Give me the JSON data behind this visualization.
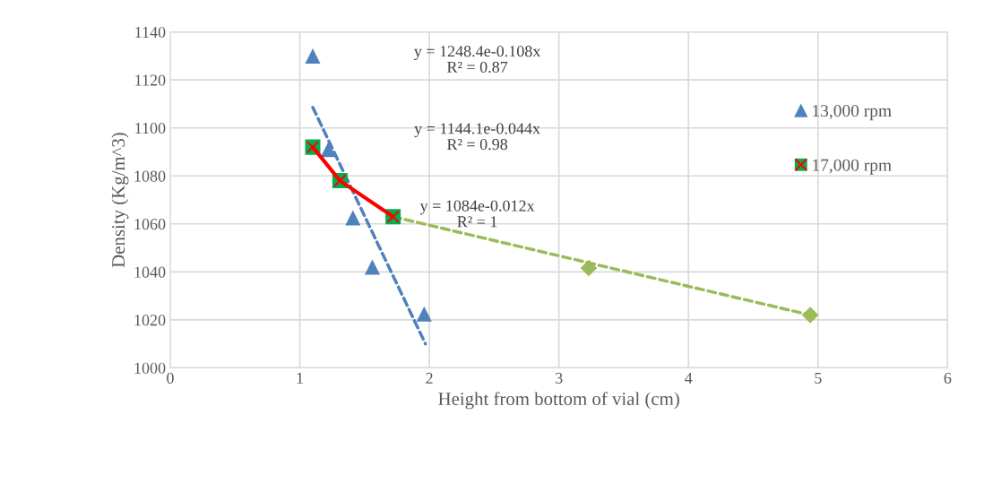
{
  "chart_data": {
    "type": "scatter",
    "xlabel": "Height from bottom of vial (cm)",
    "ylabel": "Density (Kg/m^3)",
    "xlim": [
      0,
      6
    ],
    "xticks": [
      0,
      1,
      2,
      3,
      4,
      5,
      6
    ],
    "ylim": [
      1000,
      1140
    ],
    "yticks": [
      1000,
      1020,
      1040,
      1060,
      1080,
      1100,
      1120,
      1140
    ],
    "grid": true,
    "legend": "right",
    "annotations": [
      "y = 1248.4e-0.108x\nR² = 0.87",
      "y = 1144.1e-0.044x\nR² = 0.98",
      "y = 1084e-0.012x\nR² = 1"
    ],
    "series": [
      {
        "type": "line",
        "x": [
          1.1,
          1.97
        ],
        "values": [
          1108.6,
          1010
        ],
        "color": "#4f81bd",
        "line_style": "dashed"
      },
      {
        "type": "line",
        "x": [
          1.72,
          4.94
        ],
        "values": [
          1063,
          1022
        ],
        "color": "#9bbb59",
        "line_style": "dashed"
      },
      {
        "x": [
          3.23,
          4.94
        ],
        "values": [
          1041.6,
          1022
        ],
        "color": "#9bbb59",
        "marker": "diamond"
      },
      {
        "name": "13,000 rpm",
        "x": [
          1.1,
          1.22,
          1.41,
          1.56,
          1.96
        ],
        "values": [
          1130,
          1091,
          1062.5,
          1042,
          1022.5
        ],
        "color": "#4f81bd",
        "marker": "triangle"
      },
      {
        "type": "line",
        "x": [
          1.1,
          1.31,
          1.72
        ],
        "values": [
          1092,
          1078,
          1063
        ],
        "color": "#ff0000",
        "line_style": "solid",
        "marker": "cross"
      },
      {
        "name": "17,000 rpm",
        "x": [
          1.1,
          1.31,
          1.72
        ],
        "values": [
          1092,
          1078,
          1063
        ],
        "color": "#00b050",
        "marker": "square"
      }
    ]
  }
}
